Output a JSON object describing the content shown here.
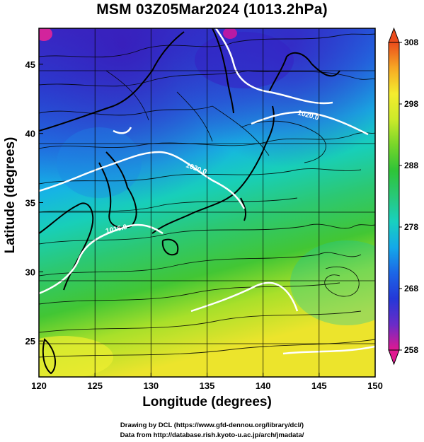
{
  "title": "MSM 03Z05Mar2024 (1013.2hPa)",
  "axes": {
    "xlabel": "Longitude (degrees)",
    "ylabel": "Latitude  (degrees)",
    "x_ticks": [
      "120",
      "125",
      "130",
      "135",
      "140",
      "145",
      "150"
    ],
    "y_ticks": [
      "25",
      "30",
      "35",
      "40",
      "45"
    ],
    "lon_range": [
      120,
      150
    ],
    "lat_range": [
      22.4,
      47.6
    ]
  },
  "colorbar": {
    "ticks": [
      "308",
      "298",
      "288",
      "278",
      "268",
      "258"
    ],
    "range": [
      258,
      308
    ],
    "scale": [
      "#e01890",
      "#6a2cc8",
      "#2438d8",
      "#1c66e6",
      "#14a8ea",
      "#18d0c0",
      "#28c878",
      "#2ec438",
      "#78d62a",
      "#ccea2a",
      "#f4ec2e",
      "#f6a824",
      "#ec4c1c"
    ]
  },
  "contours": [
    {
      "label": "1020.0"
    },
    {
      "label": "1020.0"
    },
    {
      "label": "1016.0"
    }
  ],
  "credits": {
    "line1": "Drawing by DCL (https://www.gfd-dennou.org/library/dcl/)",
    "line2": "Data from http://database.rish.kyoto-u.ac.jp/arch/jmadata/"
  }
}
